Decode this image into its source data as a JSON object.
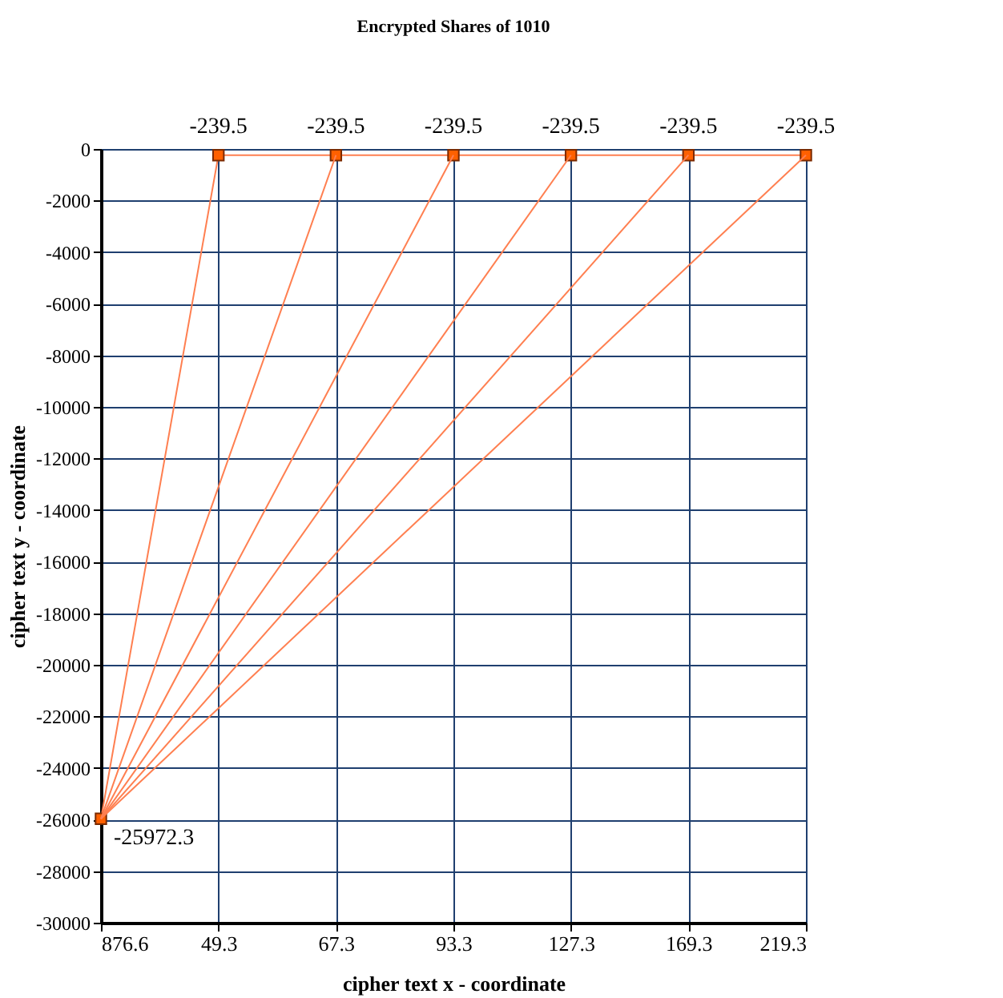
{
  "chart_data": {
    "type": "line",
    "title": "Encrypted Shares of 1010",
    "xlabel": "cipher text x - coordinate",
    "ylabel": "cipher text y - coordinate",
    "categories": [
      "876.6",
      "49.3",
      "67.3",
      "93.3",
      "127.3",
      "169.3",
      "219.3"
    ],
    "series": [
      {
        "color": "#ff7f50",
        "values": [
          -25972.3,
          -239.5,
          -239.5,
          -239.5,
          -239.5,
          -239.5,
          -239.5
        ],
        "marker": "square",
        "data_labels": true
      },
      {
        "color": "#ff7f50",
        "x": [
          "876.6",
          "67.3"
        ],
        "values": [
          -25972.3,
          -239.5
        ]
      },
      {
        "color": "#ff7f50",
        "x": [
          "876.6",
          "93.3"
        ],
        "values": [
          -25972.3,
          -239.5
        ]
      },
      {
        "color": "#ff7f50",
        "x": [
          "876.6",
          "127.3"
        ],
        "values": [
          -25972.3,
          -239.5
        ]
      },
      {
        "color": "#ff7f50",
        "x": [
          "876.6",
          "169.3"
        ],
        "values": [
          -25972.3,
          -239.5
        ]
      },
      {
        "color": "#ff7f50",
        "x": [
          "876.6",
          "219.3"
        ],
        "values": [
          -25972.3,
          -239.5
        ]
      }
    ],
    "ylim": [
      -30000,
      0
    ],
    "yticks": [
      -30000,
      -28000,
      -26000,
      -24000,
      -22000,
      -20000,
      -18000,
      -16000,
      -14000,
      -12000,
      -10000,
      -8000,
      -6000,
      -4000,
      -2000,
      0
    ],
    "grid": true,
    "line_style": "solid"
  }
}
